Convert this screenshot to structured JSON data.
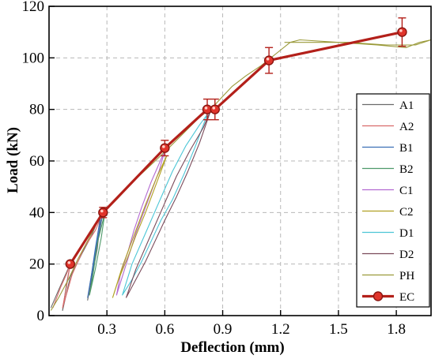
{
  "chart_data": {
    "type": "line",
    "xlabel": "Deflection (mm)",
    "ylabel": "Load (kN)",
    "xlim": [
      0,
      1.98
    ],
    "ylim": [
      0,
      120
    ],
    "xticks": [
      "0.3",
      "0.6",
      "0.9",
      "1.2",
      "1.5",
      "1.8"
    ],
    "yticks": [
      "0",
      "20",
      "40",
      "60",
      "80",
      "100",
      "120"
    ],
    "xtick_values": [
      0.3,
      0.6,
      0.9,
      1.2,
      1.5,
      1.8
    ],
    "ytick_values": [
      0,
      20,
      40,
      60,
      80,
      100,
      120
    ],
    "grid": true,
    "legend_position": "lower-right",
    "series": [
      {
        "name": "A1",
        "color": "#6a6a6a",
        "x": [
          0.01,
          0.05,
          0.08,
          0.11,
          0.09,
          0.07,
          0.11,
          0.17,
          0.22,
          0.27,
          0.25,
          0.22,
          0.2,
          0.22,
          0.28
        ],
        "y": [
          3,
          10,
          15,
          20,
          12,
          2,
          15,
          24,
          31,
          40,
          26,
          14,
          6,
          16,
          40
        ]
      },
      {
        "name": "A2",
        "color": "#d96b6b",
        "x": [
          0.02,
          0.06,
          0.09,
          0.11,
          0.09,
          0.07,
          0.12,
          0.18,
          0.24,
          0.28
        ],
        "y": [
          3,
          11,
          16,
          20,
          11,
          3,
          16,
          26,
          33,
          40
        ]
      },
      {
        "name": "B1",
        "color": "#3b6fb5",
        "x": [
          0.27,
          0.24,
          0.22,
          0.2,
          0.22,
          0.24,
          0.26,
          0.28
        ],
        "y": [
          40,
          26,
          16,
          7,
          15,
          24,
          33,
          40
        ]
      },
      {
        "name": "B2",
        "color": "#4e9a6a",
        "x": [
          0.29,
          0.25,
          0.23,
          0.21,
          0.24,
          0.27,
          0.29
        ],
        "y": [
          40,
          28,
          17,
          8,
          18,
          30,
          40
        ]
      },
      {
        "name": "C1",
        "color": "#b36ad1",
        "x": [
          0.6,
          0.53,
          0.48,
          0.44,
          0.41,
          0.37,
          0.35,
          0.4,
          0.45,
          0.51,
          0.57,
          0.6
        ],
        "y": [
          64,
          52,
          42,
          33,
          25,
          16,
          8,
          20,
          32,
          44,
          56,
          64
        ]
      },
      {
        "name": "C2",
        "color": "#b0a022",
        "x": [
          0.61,
          0.55,
          0.5,
          0.45,
          0.41,
          0.36,
          0.33,
          0.38,
          0.44,
          0.5,
          0.56,
          0.61
        ],
        "y": [
          62,
          50,
          40,
          31,
          23,
          14,
          7,
          19,
          31,
          43,
          54,
          62
        ]
      },
      {
        "name": "D1",
        "color": "#4cc6d6",
        "x": [
          0.82,
          0.76,
          0.7,
          0.64,
          0.58,
          0.53,
          0.48,
          0.43,
          0.38,
          0.43,
          0.5,
          0.57,
          0.64,
          0.71,
          0.78,
          0.82
        ],
        "y": [
          78,
          66,
          55,
          45,
          37,
          29,
          21,
          14,
          8,
          20,
          32,
          44,
          56,
          66,
          74,
          78
        ]
      },
      {
        "name": "D2",
        "color": "#7a4a5a",
        "x": [
          0.84,
          0.78,
          0.72,
          0.66,
          0.6,
          0.55,
          0.5,
          0.45,
          0.4,
          0.45,
          0.52,
          0.59,
          0.66,
          0.73,
          0.8,
          0.84
        ],
        "y": [
          80,
          67,
          56,
          46,
          37,
          29,
          21,
          14,
          7,
          18,
          30,
          42,
          54,
          64,
          73,
          80
        ]
      },
      {
        "name": "PH",
        "color": "#9a9a3a",
        "x": [
          0.01,
          0.05,
          0.1,
          0.15,
          0.2,
          0.27,
          0.35,
          0.45,
          0.55,
          0.62,
          0.7,
          0.78,
          0.85,
          0.9,
          0.95,
          1.02,
          1.1,
          1.15,
          1.2,
          1.25,
          1.3,
          1.5,
          1.7,
          1.85,
          1.92,
          1.98,
          1.9,
          1.75,
          1.55,
          1.35,
          1.22
        ],
        "y": [
          2,
          7,
          14,
          22,
          29,
          39,
          45,
          53,
          60,
          65,
          71,
          77,
          81,
          85,
          89,
          93,
          97,
          100,
          103,
          106,
          107,
          106,
          105,
          104,
          106,
          107,
          105,
          105,
          106,
          106,
          106
        ]
      },
      {
        "name": "EC",
        "color": "#b3201a",
        "x": [
          0.11,
          0.28,
          0.6,
          0.82,
          0.86,
          1.14,
          1.83
        ],
        "y": [
          20,
          40,
          65,
          80,
          80,
          99,
          110
        ],
        "error": [
          0,
          2,
          3,
          4,
          4,
          5,
          5.5
        ]
      }
    ]
  }
}
